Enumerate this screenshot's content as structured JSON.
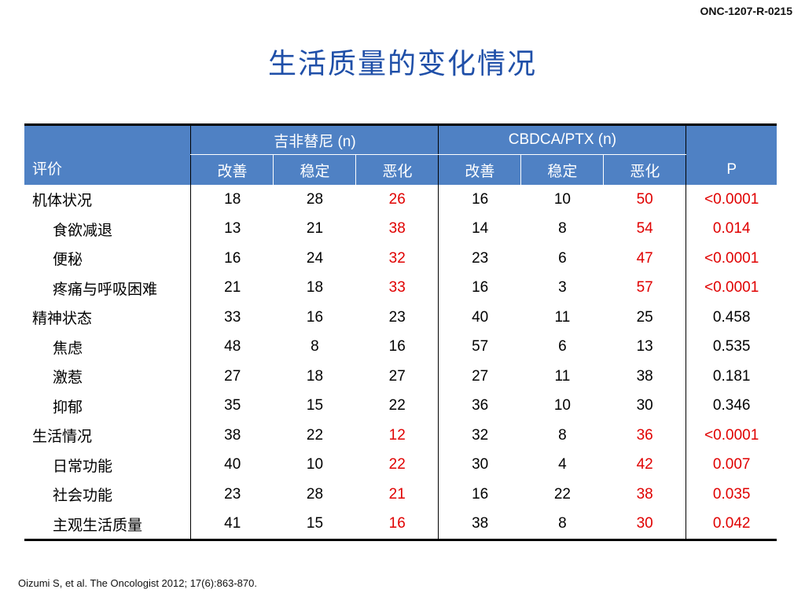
{
  "slide": {
    "code": "ONC-1207-R-0215",
    "title": "生活质量的变化情况",
    "citation": "Oizumi S, et al. The Oncologist 2012; 17(6):863-870."
  },
  "table": {
    "col_label": "评价",
    "group1": "吉非替尼 (n)",
    "group2": "CBDCA/PTX (n)",
    "p_label": "P",
    "sub": [
      "改善",
      "稳定",
      "恶化",
      "改善",
      "稳定",
      "恶化"
    ],
    "rows": [
      {
        "label": "机体状况",
        "indent": false,
        "values": [
          "18",
          "28",
          "26",
          "16",
          "10",
          "50"
        ],
        "p": "<0.0001",
        "sig": true
      },
      {
        "label": "食欲减退",
        "indent": true,
        "values": [
          "13",
          "21",
          "38",
          "14",
          "8",
          "54"
        ],
        "p": "0.014",
        "sig": true
      },
      {
        "label": "便秘",
        "indent": true,
        "values": [
          "16",
          "24",
          "32",
          "23",
          "6",
          "47"
        ],
        "p": "<0.0001",
        "sig": true
      },
      {
        "label": "疼痛与呼吸困难",
        "indent": true,
        "values": [
          "21",
          "18",
          "33",
          "16",
          "3",
          "57"
        ],
        "p": "<0.0001",
        "sig": true
      },
      {
        "label": "精神状态",
        "indent": false,
        "values": [
          "33",
          "16",
          "23",
          "40",
          "11",
          "25"
        ],
        "p": "0.458",
        "sig": false
      },
      {
        "label": "焦虑",
        "indent": true,
        "values": [
          "48",
          "8",
          "16",
          "57",
          "6",
          "13"
        ],
        "p": "0.535",
        "sig": false
      },
      {
        "label": "激惹",
        "indent": true,
        "values": [
          "27",
          "18",
          "27",
          "27",
          "11",
          "38"
        ],
        "p": "0.181",
        "sig": false
      },
      {
        "label": "抑郁",
        "indent": true,
        "values": [
          "35",
          "15",
          "22",
          "36",
          "10",
          "30"
        ],
        "p": "0.346",
        "sig": false
      },
      {
        "label": "生活情况",
        "indent": false,
        "values": [
          "38",
          "22",
          "12",
          "32",
          "8",
          "36"
        ],
        "p": "<0.0001",
        "sig": true
      },
      {
        "label": "日常功能",
        "indent": true,
        "values": [
          "40",
          "10",
          "22",
          "30",
          "4",
          "42"
        ],
        "p": "0.007",
        "sig": true
      },
      {
        "label": "社会功能",
        "indent": true,
        "values": [
          "23",
          "28",
          "21",
          "16",
          "22",
          "38"
        ],
        "p": "0.035",
        "sig": true
      },
      {
        "label": "主观生活质量",
        "indent": true,
        "values": [
          "41",
          "15",
          "16",
          "38",
          "8",
          "30"
        ],
        "p": "0.042",
        "sig": true
      }
    ]
  }
}
